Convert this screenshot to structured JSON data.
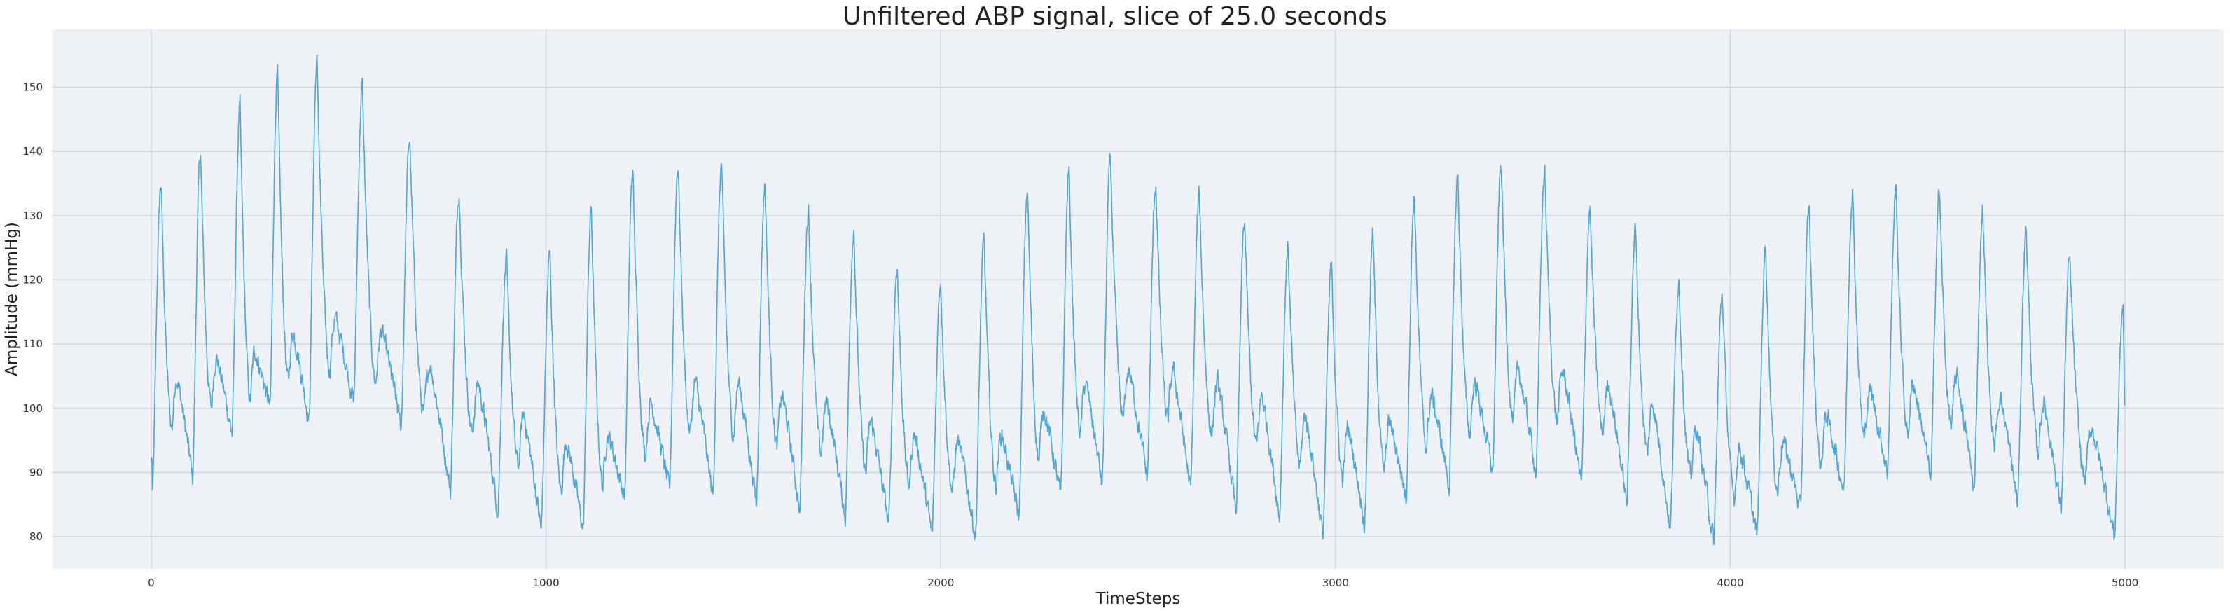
{
  "chart_data": {
    "type": "line",
    "title": "Unfiltered ABP signal, slice of 25.0 seconds",
    "xlabel": "TimeSteps",
    "ylabel": "Amplitude (mmHg)",
    "xlim": [
      -250,
      5250
    ],
    "ylim": [
      75,
      159
    ],
    "xticks": [
      0,
      1000,
      2000,
      3000,
      4000,
      5000
    ],
    "yticks": [
      80,
      90,
      100,
      110,
      120,
      130,
      140,
      150
    ],
    "grid": true,
    "legend": "none",
    "series_color": "#4da6d6",
    "background_color": "#eef1f6",
    "sample_count": 5000,
    "beats": [
      {
        "t": 25,
        "peak": 135,
        "min": 86,
        "notch": 105
      },
      {
        "t": 125,
        "peak": 140,
        "min": 89,
        "notch": 108
      },
      {
        "t": 225,
        "peak": 147,
        "min": 96,
        "notch": 109
      },
      {
        "t": 320,
        "peak": 152,
        "min": 100,
        "notch": 112
      },
      {
        "t": 420,
        "peak": 154,
        "min": 98,
        "notch": 114
      },
      {
        "t": 535,
        "peak": 150,
        "min": 101,
        "notch": 112
      },
      {
        "t": 655,
        "peak": 142,
        "min": 97,
        "notch": 107
      },
      {
        "t": 780,
        "peak": 134,
        "min": 87,
        "notch": 104
      },
      {
        "t": 900,
        "peak": 123,
        "min": 84,
        "notch": 99
      },
      {
        "t": 1010,
        "peak": 124,
        "min": 81,
        "notch": 95
      },
      {
        "t": 1115,
        "peak": 131,
        "min": 81,
        "notch": 96
      },
      {
        "t": 1220,
        "peak": 137,
        "min": 86,
        "notch": 101
      },
      {
        "t": 1335,
        "peak": 138,
        "min": 87,
        "notch": 104
      },
      {
        "t": 1445,
        "peak": 138,
        "min": 86,
        "notch": 104
      },
      {
        "t": 1555,
        "peak": 135,
        "min": 85,
        "notch": 102
      },
      {
        "t": 1665,
        "peak": 131,
        "min": 84,
        "notch": 101
      },
      {
        "t": 1780,
        "peak": 128,
        "min": 83,
        "notch": 98
      },
      {
        "t": 1890,
        "peak": 122,
        "min": 82,
        "notch": 96
      },
      {
        "t": 2000,
        "peak": 120,
        "min": 80,
        "notch": 95
      },
      {
        "t": 2110,
        "peak": 126,
        "min": 80,
        "notch": 96
      },
      {
        "t": 2220,
        "peak": 134,
        "min": 83,
        "notch": 100
      },
      {
        "t": 2325,
        "peak": 137,
        "min": 86,
        "notch": 104
      },
      {
        "t": 2430,
        "peak": 139,
        "min": 88,
        "notch": 106
      },
      {
        "t": 2545,
        "peak": 135,
        "min": 89,
        "notch": 106
      },
      {
        "t": 2655,
        "peak": 133,
        "min": 87,
        "notch": 104
      },
      {
        "t": 2770,
        "peak": 129,
        "min": 84,
        "notch": 102
      },
      {
        "t": 2880,
        "peak": 125,
        "min": 83,
        "notch": 99
      },
      {
        "t": 2990,
        "peak": 122,
        "min": 80,
        "notch": 97
      },
      {
        "t": 3095,
        "peak": 127,
        "min": 82,
        "notch": 98
      },
      {
        "t": 3200,
        "peak": 133,
        "min": 86,
        "notch": 102
      },
      {
        "t": 3310,
        "peak": 136,
        "min": 88,
        "notch": 104
      },
      {
        "t": 3420,
        "peak": 138,
        "min": 90,
        "notch": 106
      },
      {
        "t": 3530,
        "peak": 137,
        "min": 90,
        "notch": 106
      },
      {
        "t": 3645,
        "peak": 131,
        "min": 88,
        "notch": 104
      },
      {
        "t": 3760,
        "peak": 128,
        "min": 85,
        "notch": 101
      },
      {
        "t": 3870,
        "peak": 120,
        "min": 81,
        "notch": 97
      },
      {
        "t": 3980,
        "peak": 118,
        "min": 79,
        "notch": 94
      },
      {
        "t": 4090,
        "peak": 125,
        "min": 80,
        "notch": 95
      },
      {
        "t": 4200,
        "peak": 131,
        "min": 84,
        "notch": 99
      },
      {
        "t": 4310,
        "peak": 134,
        "min": 87,
        "notch": 103
      },
      {
        "t": 4420,
        "peak": 134,
        "min": 90,
        "notch": 104
      },
      {
        "t": 4530,
        "peak": 134,
        "min": 89,
        "notch": 105
      },
      {
        "t": 4640,
        "peak": 131,
        "min": 87,
        "notch": 102
      },
      {
        "t": 4750,
        "peak": 128,
        "min": 85,
        "notch": 101
      },
      {
        "t": 4860,
        "peak": 123,
        "min": 84,
        "notch": 97
      },
      {
        "t": 4995,
        "peak": 116,
        "min": 80,
        "notch": 96
      }
    ]
  }
}
